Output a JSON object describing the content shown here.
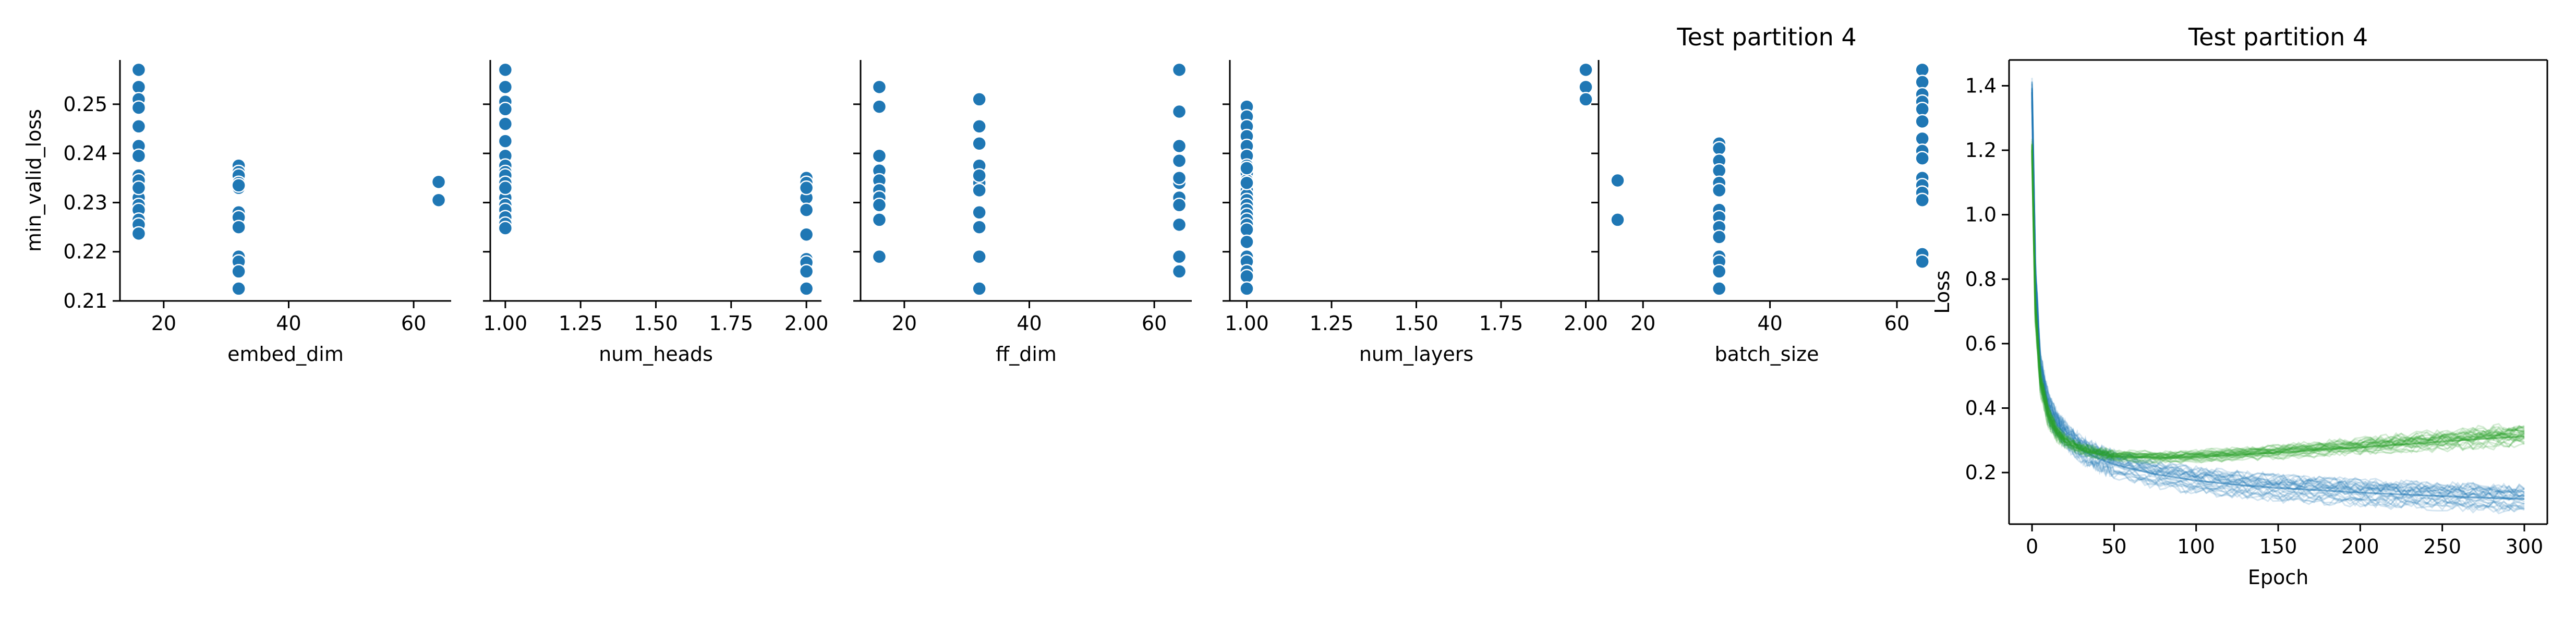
{
  "colors": {
    "points": "#1f77b4",
    "point_edge": "#ffffff",
    "train_loss": "#1f77b4",
    "valid_loss": "#2ca02c",
    "axis": "#000000"
  },
  "chart_data": [
    {
      "type": "scatter",
      "xlabel": "embed_dim",
      "ylabel": "min_valid_loss",
      "title": "",
      "xlim": [
        13,
        66
      ],
      "ylim": [
        0.21,
        0.259
      ],
      "xticks": [
        20,
        40,
        60
      ],
      "xtick_labels": [
        "20",
        "40",
        "60"
      ],
      "yticks": [
        0.21,
        0.22,
        0.23,
        0.24,
        0.25
      ],
      "ytick_labels": [
        "0.21",
        "0.22",
        "0.23",
        "0.24",
        "0.25"
      ],
      "show_yticklabels": true,
      "points": {
        "x": [
          16,
          16,
          16,
          16,
          16,
          16,
          16,
          16,
          16,
          16,
          16,
          16,
          16,
          16,
          16,
          16,
          16,
          16,
          32,
          32,
          32,
          32,
          32,
          32,
          32,
          32,
          32,
          32,
          32,
          32,
          32,
          64,
          64
        ],
        "y": [
          0.257,
          0.2535,
          0.251,
          0.2493,
          0.2455,
          0.2415,
          0.2395,
          0.2355,
          0.234,
          0.2325,
          0.231,
          0.2295,
          0.2285,
          0.2265,
          0.2255,
          0.2237,
          0.2345,
          0.233,
          0.2375,
          0.2362,
          0.2355,
          0.234,
          0.233,
          0.228,
          0.227,
          0.225,
          0.219,
          0.218,
          0.216,
          0.2125,
          0.2335,
          0.2342,
          0.2305
        ]
      }
    },
    {
      "type": "scatter",
      "xlabel": "num_heads",
      "ylabel": "",
      "title": "",
      "xlim": [
        0.95,
        2.05
      ],
      "ylim": [
        0.21,
        0.259
      ],
      "xticks": [
        1.0,
        1.25,
        1.5,
        1.75,
        2.0
      ],
      "xtick_labels": [
        "1.00",
        "1.25",
        "1.50",
        "1.75",
        "2.00"
      ],
      "yticks": [
        0.21,
        0.22,
        0.23,
        0.24,
        0.25
      ],
      "show_yticklabels": false,
      "points": {
        "x": [
          1,
          1,
          1,
          1,
          1,
          1,
          1,
          1,
          1,
          1,
          1,
          1,
          1,
          1,
          1,
          1,
          1,
          1,
          1,
          1,
          2,
          2,
          2,
          2,
          2,
          2,
          2,
          2,
          2,
          2,
          2
        ],
        "y": [
          0.257,
          0.2535,
          0.2505,
          0.249,
          0.246,
          0.2425,
          0.2395,
          0.2375,
          0.2362,
          0.2355,
          0.234,
          0.2325,
          0.231,
          0.2295,
          0.2285,
          0.227,
          0.2257,
          0.2248,
          0.234,
          0.233,
          0.235,
          0.234,
          0.2325,
          0.231,
          0.2285,
          0.2235,
          0.2185,
          0.2178,
          0.216,
          0.2125,
          0.233
        ]
      }
    },
    {
      "type": "scatter",
      "xlabel": "ff_dim",
      "ylabel": "",
      "title": "",
      "xlim": [
        13,
        66
      ],
      "ylim": [
        0.21,
        0.259
      ],
      "xticks": [
        20,
        40,
        60
      ],
      "xtick_labels": [
        "20",
        "40",
        "60"
      ],
      "yticks": [
        0.21,
        0.22,
        0.23,
        0.24,
        0.25
      ],
      "show_yticklabels": false,
      "points": {
        "x": [
          16,
          16,
          16,
          16,
          16,
          16,
          16,
          16,
          16,
          16,
          32,
          32,
          32,
          32,
          32,
          32,
          32,
          32,
          32,
          32,
          32,
          64,
          64,
          64,
          64,
          64,
          64,
          64,
          64,
          64,
          64,
          64
        ],
        "y": [
          0.2535,
          0.2495,
          0.2395,
          0.2365,
          0.2345,
          0.2325,
          0.231,
          0.2295,
          0.2265,
          0.219,
          0.251,
          0.2455,
          0.242,
          0.2375,
          0.234,
          0.2325,
          0.228,
          0.225,
          0.219,
          0.2125,
          0.2355,
          0.257,
          0.2485,
          0.2415,
          0.2385,
          0.234,
          0.231,
          0.2295,
          0.2255,
          0.219,
          0.216,
          0.235
        ]
      }
    },
    {
      "type": "scatter",
      "xlabel": "num_layers",
      "ylabel": "",
      "title": "",
      "xlim": [
        0.95,
        2.05
      ],
      "ylim": [
        0.21,
        0.259
      ],
      "xticks": [
        1.0,
        1.25,
        1.5,
        1.75,
        2.0
      ],
      "xtick_labels": [
        "1.00",
        "1.25",
        "1.50",
        "1.75",
        "2.00"
      ],
      "yticks": [
        0.21,
        0.22,
        0.23,
        0.24,
        0.25
      ],
      "show_yticklabels": false,
      "points": {
        "x": [
          1,
          1,
          1,
          1,
          1,
          1,
          1,
          1,
          1,
          1,
          1,
          1,
          1,
          1,
          1,
          1,
          1,
          1,
          1,
          1,
          1,
          1,
          1,
          1,
          1,
          1,
          1,
          2,
          2,
          2
        ],
        "y": [
          0.2495,
          0.2475,
          0.2455,
          0.2435,
          0.2415,
          0.2395,
          0.2375,
          0.236,
          0.2345,
          0.2335,
          0.2325,
          0.2315,
          0.2305,
          0.2295,
          0.2285,
          0.2275,
          0.2265,
          0.2255,
          0.2245,
          0.222,
          0.219,
          0.218,
          0.216,
          0.215,
          0.2125,
          0.237,
          0.234,
          0.257,
          0.2535,
          0.251
        ]
      }
    },
    {
      "type": "scatter",
      "xlabel": "batch_size",
      "ylabel": "",
      "title": "Test partition 4",
      "xlim": [
        13,
        66
      ],
      "ylim": [
        0.21,
        0.259
      ],
      "xticks": [
        20,
        40,
        60
      ],
      "xtick_labels": [
        "20",
        "40",
        "60"
      ],
      "yticks": [
        0.21,
        0.22,
        0.23,
        0.24,
        0.25
      ],
      "show_yticklabels": false,
      "points": {
        "x": [
          16,
          16,
          32,
          32,
          32,
          32,
          32,
          32,
          32,
          32,
          32,
          32,
          32,
          32,
          32,
          32,
          64,
          64,
          64,
          64,
          64,
          64,
          64,
          64,
          64,
          64,
          64,
          64,
          64,
          64,
          64
        ],
        "y": [
          0.2345,
          0.2265,
          0.242,
          0.241,
          0.2385,
          0.2365,
          0.234,
          0.2325,
          0.2285,
          0.227,
          0.225,
          0.223,
          0.219,
          0.218,
          0.216,
          0.2125,
          0.257,
          0.2545,
          0.252,
          0.2505,
          0.249,
          0.2465,
          0.243,
          0.2405,
          0.239,
          0.235,
          0.2335,
          0.232,
          0.2305,
          0.2195,
          0.218
        ]
      }
    },
    {
      "type": "line",
      "title": "Test partition 4",
      "xlabel": "Epoch",
      "ylabel": "Loss",
      "xlim": [
        -14,
        314
      ],
      "ylim": [
        0.04,
        1.48
      ],
      "xticks": [
        0,
        50,
        100,
        150,
        200,
        250,
        300
      ],
      "xtick_labels": [
        "0",
        "50",
        "100",
        "150",
        "200",
        "250",
        "300"
      ],
      "yticks": [
        0.2,
        0.4,
        0.6,
        0.8,
        1.0,
        1.2,
        1.4
      ],
      "ytick_labels": [
        "0.2",
        "0.4",
        "0.6",
        "0.8",
        "1.0",
        "1.2",
        "1.4"
      ],
      "grid": false,
      "series": [
        {
          "color": "#1f77b4",
          "alpha": 0.12,
          "run_count": 30,
          "x": [
            0,
            2,
            5,
            10,
            15,
            20,
            30,
            40,
            50,
            75,
            100,
            125,
            150,
            175,
            200,
            225,
            250,
            275,
            300
          ],
          "y": [
            1.38,
            0.8,
            0.52,
            0.4,
            0.35,
            0.32,
            0.27,
            0.245,
            0.225,
            0.195,
            0.175,
            0.162,
            0.152,
            0.145,
            0.138,
            0.132,
            0.127,
            0.122,
            0.118
          ],
          "spread": [
            0.03,
            0.05,
            0.04,
            0.035,
            0.03,
            0.03,
            0.03,
            0.03,
            0.03,
            0.03,
            0.03,
            0.03,
            0.03,
            0.03,
            0.03,
            0.03,
            0.03,
            0.03,
            0.03
          ]
        },
        {
          "color": "#2ca02c",
          "alpha": 0.12,
          "run_count": 30,
          "x": [
            0,
            2,
            5,
            10,
            15,
            20,
            30,
            40,
            50,
            75,
            100,
            125,
            150,
            175,
            200,
            225,
            250,
            275,
            300
          ],
          "y": [
            1.2,
            0.7,
            0.48,
            0.37,
            0.32,
            0.295,
            0.27,
            0.258,
            0.25,
            0.245,
            0.248,
            0.255,
            0.262,
            0.27,
            0.278,
            0.287,
            0.296,
            0.305,
            0.312
          ],
          "spread": [
            0.03,
            0.04,
            0.035,
            0.03,
            0.02,
            0.018,
            0.015,
            0.015,
            0.014,
            0.015,
            0.016,
            0.017,
            0.018,
            0.02,
            0.022,
            0.024,
            0.026,
            0.028,
            0.03
          ]
        }
      ]
    }
  ]
}
